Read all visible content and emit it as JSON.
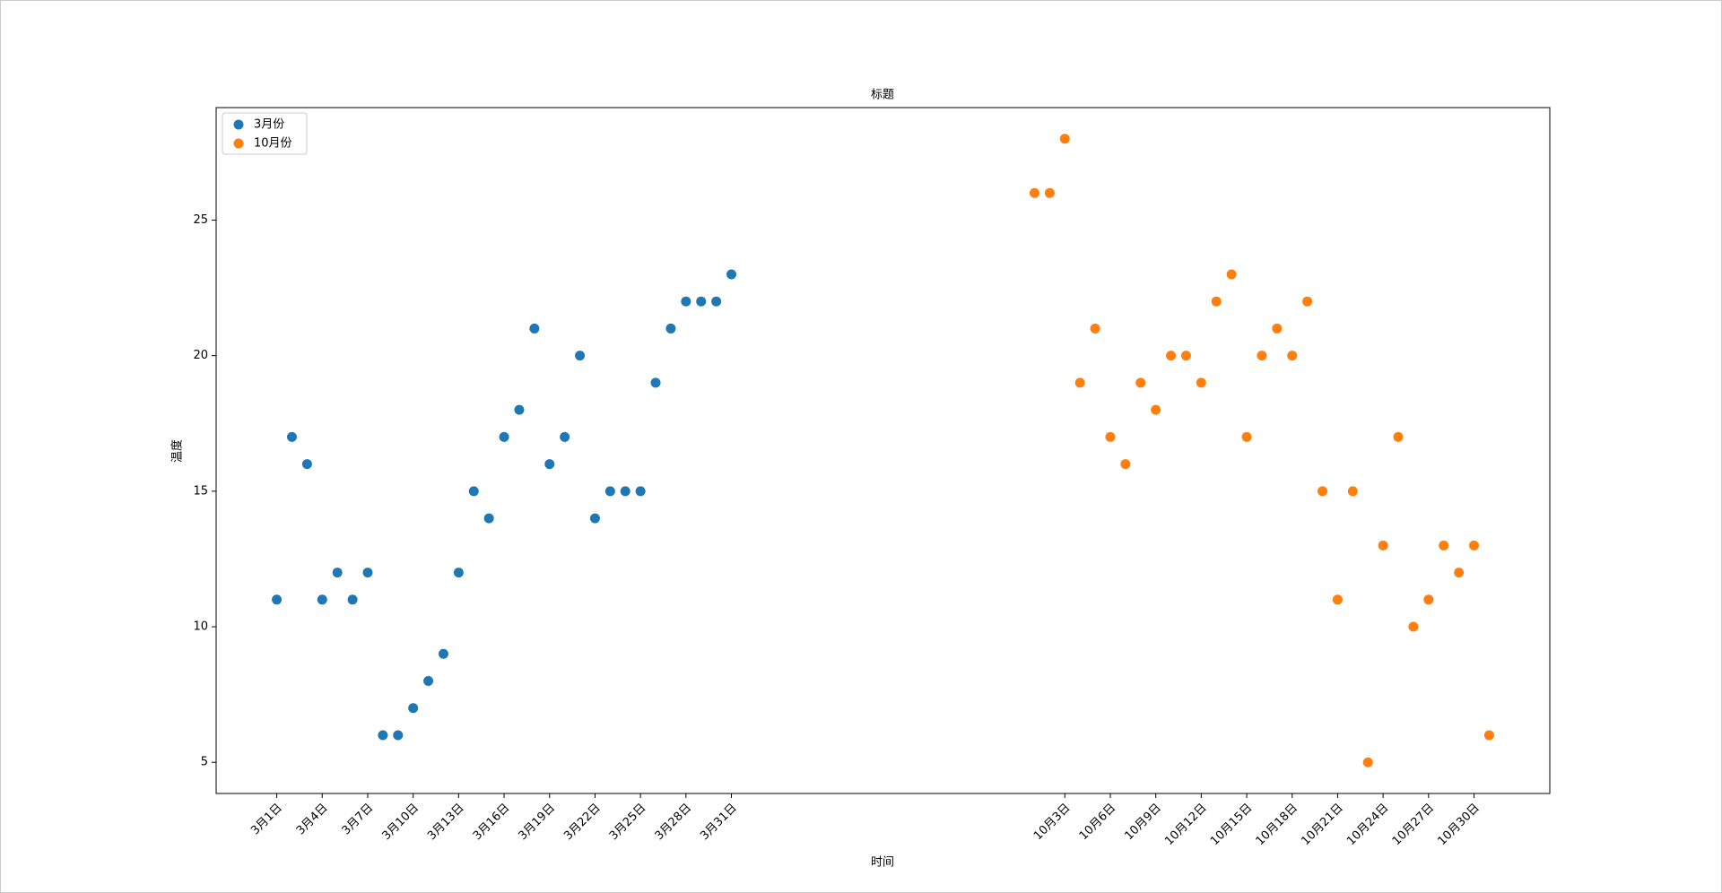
{
  "chart_data": {
    "type": "scatter",
    "title": "标题",
    "x_label": "时间",
    "y_label": "温度",
    "series": [
      {
        "name": "3月份",
        "color": "#1f77b4",
        "x": [
          0,
          1,
          2,
          3,
          4,
          5,
          6,
          7,
          8,
          9,
          10,
          11,
          12,
          13,
          14,
          15,
          16,
          17,
          18,
          19,
          20,
          21,
          22,
          23,
          24,
          25,
          26,
          27,
          28,
          29,
          30
        ],
        "values": [
          11,
          17,
          16,
          11,
          12,
          11,
          12,
          6,
          6,
          7,
          8,
          9,
          12,
          15,
          14,
          17,
          18,
          21,
          16,
          17,
          20,
          14,
          15,
          15,
          15,
          19,
          21,
          22,
          22,
          22,
          23
        ]
      },
      {
        "name": "10月份",
        "color": "#ff7f0e",
        "x": [
          50,
          51,
          52,
          53,
          54,
          55,
          56,
          57,
          58,
          59,
          60,
          61,
          62,
          63,
          64,
          65,
          66,
          67,
          68,
          69,
          70,
          71,
          72,
          73,
          74,
          75,
          76,
          77,
          78,
          79,
          80
        ],
        "values": [
          26,
          26,
          28,
          19,
          21,
          17,
          16,
          19,
          18,
          20,
          20,
          19,
          22,
          23,
          17,
          20,
          21,
          20,
          22,
          15,
          11,
          15,
          5,
          13,
          17,
          10,
          11,
          13,
          12,
          13,
          6
        ]
      }
    ],
    "xlim": [
      -4,
      84
    ],
    "ylim": [
      3.85,
      29.15
    ],
    "xticks": [
      {
        "value": 0,
        "label": "3月1日"
      },
      {
        "value": 3,
        "label": "3月4日"
      },
      {
        "value": 6,
        "label": "3月7日"
      },
      {
        "value": 9,
        "label": "3月10日"
      },
      {
        "value": 12,
        "label": "3月13日"
      },
      {
        "value": 15,
        "label": "3月16日"
      },
      {
        "value": 18,
        "label": "3月19日"
      },
      {
        "value": 21,
        "label": "3月22日"
      },
      {
        "value": 24,
        "label": "3月25日"
      },
      {
        "value": 27,
        "label": "3月28日"
      },
      {
        "value": 30,
        "label": "3月31日"
      },
      {
        "value": 52,
        "label": "10月3日"
      },
      {
        "value": 55,
        "label": "10月6日"
      },
      {
        "value": 58,
        "label": "10月9日"
      },
      {
        "value": 61,
        "label": "10月12日"
      },
      {
        "value": 64,
        "label": "10月15日"
      },
      {
        "value": 67,
        "label": "10月18日"
      },
      {
        "value": 70,
        "label": "10月21日"
      },
      {
        "value": 73,
        "label": "10月24日"
      },
      {
        "value": 76,
        "label": "10月27日"
      },
      {
        "value": 79,
        "label": "10月30日"
      }
    ],
    "yticks": [
      5,
      10,
      15,
      20,
      25
    ],
    "grid": false,
    "legend": "upper-left"
  }
}
